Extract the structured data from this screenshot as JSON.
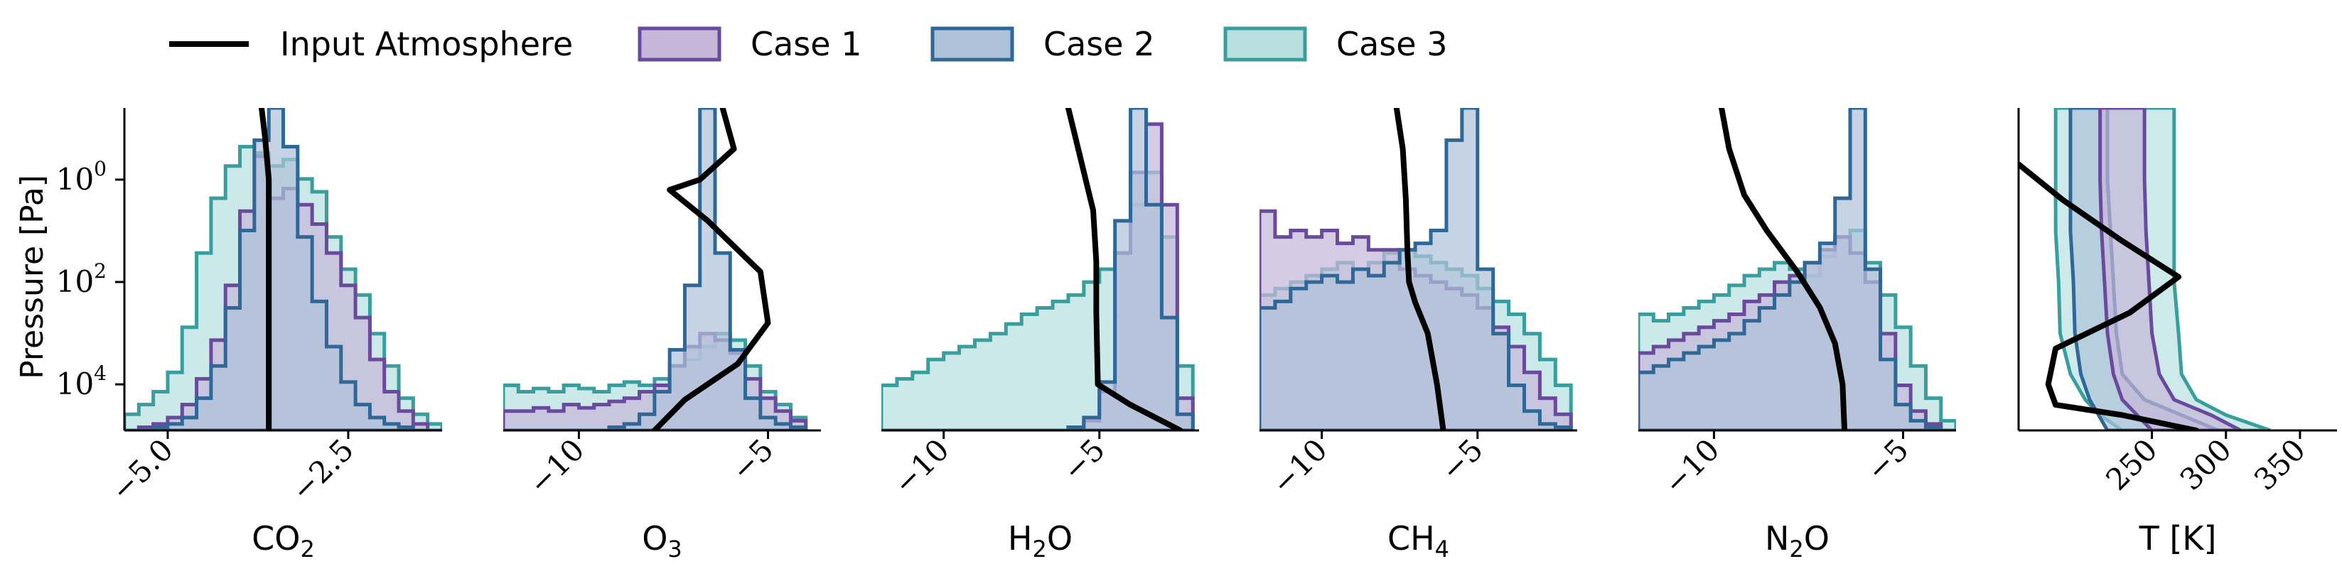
{
  "legend": {
    "placement": "top",
    "entries": [
      {
        "label": "Input Atmosphere",
        "kind": "line",
        "color": "#000000"
      },
      {
        "label": "Case 1",
        "kind": "patch",
        "fill": "#c6b7d9",
        "edge": "#6a4a9c"
      },
      {
        "label": "Case 2",
        "kind": "patch",
        "fill": "#aec2da",
        "edge": "#2f6796"
      },
      {
        "label": "Case 3",
        "kind": "patch",
        "fill": "#b9e0e0",
        "edge": "#3a9e9e"
      }
    ]
  },
  "ylabel": "Pressure [Pa]",
  "ytick_labels": [
    "10",
    "10",
    "10"
  ],
  "ytick_exponents": [
    "0",
    "2",
    "4"
  ],
  "colors": {
    "case1_fill": "#c6b7d9",
    "case1_edge": "#6a4a9c",
    "case2_fill": "#aec2da",
    "case2_edge": "#2f6796",
    "case3_fill": "#b9e0e0",
    "case3_edge": "#3a9e9e",
    "profile": "#000000"
  },
  "chart_data": [
    {
      "type": "histogram",
      "xlabel": "CO",
      "xlabel_sub": "2",
      "xlim": [
        -5.6,
        -1.2
      ],
      "xticks": [
        -5.0,
        -2.5
      ],
      "xtick_labels": [
        "−5.0",
        "−2.5"
      ],
      "ylim_log10": [
        4.9,
        -1.4
      ],
      "bins": [
        -5.6,
        -5.4,
        -5.2,
        -5.0,
        -4.8,
        -4.6,
        -4.4,
        -4.2,
        -4.0,
        -3.8,
        -3.6,
        -3.4,
        -3.2,
        -3.0,
        -2.8,
        -2.6,
        -2.4,
        -2.2,
        -2.0,
        -1.8,
        -1.6,
        -1.4,
        -1.2
      ],
      "series": [
        {
          "key": "case3",
          "heights": [
            0.05,
            0.08,
            0.12,
            0.18,
            0.32,
            0.55,
            0.72,
            0.82,
            0.88,
            0.86,
            0.82,
            0.84,
            0.78,
            0.74,
            0.6,
            0.5,
            0.42,
            0.3,
            0.2,
            0.1,
            0.05,
            0.02
          ]
        },
        {
          "key": "case1",
          "heights": [
            0,
            0.01,
            0.02,
            0.04,
            0.08,
            0.16,
            0.28,
            0.45,
            0.68,
            0.85,
            0.72,
            0.75,
            0.7,
            0.64,
            0.55,
            0.45,
            0.35,
            0.22,
            0.12,
            0.06,
            0.02,
            0
          ]
        },
        {
          "key": "case2",
          "heights": [
            0,
            0,
            0.01,
            0.02,
            0.04,
            0.1,
            0.2,
            0.38,
            0.62,
            0.9,
            1.0,
            0.88,
            0.6,
            0.4,
            0.26,
            0.15,
            0.08,
            0.04,
            0.02,
            0.01,
            0,
            0
          ]
        }
      ],
      "profile": {
        "x": [
          -3.7,
          -3.65,
          -3.6,
          -3.6,
          -3.6,
          -3.6,
          -3.6
        ],
        "logp": [
          -1.4,
          -0.8,
          0,
          1,
          2,
          3,
          4.9
        ]
      }
    },
    {
      "type": "histogram",
      "xlabel": "O",
      "xlabel_sub": "3",
      "xlim": [
        -12.0,
        -3.6
      ],
      "xticks": [
        -10,
        -5
      ],
      "xtick_labels": [
        "−10",
        "−5"
      ],
      "ylim_log10": [
        4.9,
        -1.4
      ],
      "bins": [
        -12.0,
        -11.6,
        -11.2,
        -10.8,
        -10.4,
        -10.0,
        -9.6,
        -9.2,
        -8.8,
        -8.4,
        -8.0,
        -7.6,
        -7.2,
        -6.8,
        -6.4,
        -6.0,
        -5.6,
        -5.2,
        -4.8,
        -4.4,
        -4.0,
        -3.6
      ],
      "series": [
        {
          "key": "case3",
          "heights": [
            0.14,
            0.12,
            0.13,
            0.12,
            0.14,
            0.13,
            0.12,
            0.14,
            0.15,
            0.14,
            0.16,
            0.2,
            0.22,
            0.26,
            0.3,
            0.28,
            0.2,
            0.12,
            0.08,
            0.04
          ]
        },
        {
          "key": "case1",
          "heights": [
            0.06,
            0.06,
            0.07,
            0.06,
            0.08,
            0.07,
            0.08,
            0.09,
            0.1,
            0.12,
            0.14,
            0.2,
            0.26,
            0.3,
            0.28,
            0.24,
            0.16,
            0.1,
            0.06,
            0.03
          ]
        },
        {
          "key": "case2",
          "heights": [
            0,
            0,
            0,
            0,
            0,
            0,
            0,
            0.01,
            0.02,
            0.05,
            0.12,
            0.25,
            0.45,
            1.0,
            0.55,
            0.25,
            0.1,
            0.04,
            0.02,
            0.01
          ]
        }
      ],
      "profile": {
        "x": [
          -6.2,
          -5.9,
          -6.8,
          -7.6,
          -6.6,
          -5.2,
          -5.0,
          -5.8,
          -7.2,
          -8.0
        ],
        "logp": [
          -1.4,
          -0.6,
          0,
          0.2,
          0.8,
          1.8,
          2.8,
          3.6,
          4.3,
          4.9
        ]
      }
    },
    {
      "type": "histogram",
      "xlabel": "H",
      "xlabel_sub": "2",
      "xlabel_tail": "O",
      "xlim": [
        -12.0,
        -1.8
      ],
      "xticks": [
        -10,
        -5
      ],
      "xtick_labels": [
        "−10",
        "−5"
      ],
      "ylim_log10": [
        4.9,
        -1.4
      ],
      "bins": [
        -12.0,
        -11.5,
        -11.0,
        -10.5,
        -10.0,
        -9.5,
        -9.0,
        -8.5,
        -8.0,
        -7.5,
        -7.0,
        -6.5,
        -6.0,
        -5.5,
        -5.0,
        -4.5,
        -4.0,
        -3.5,
        -3.0,
        -2.5,
        -2.0
      ],
      "series": [
        {
          "key": "case3",
          "heights": [
            0.14,
            0.16,
            0.18,
            0.22,
            0.24,
            0.26,
            0.28,
            0.3,
            0.33,
            0.36,
            0.38,
            0.4,
            0.42,
            0.46,
            0.5,
            0.55,
            0.7,
            0.8,
            0.6,
            0.2
          ]
        },
        {
          "key": "case1",
          "heights": [
            0,
            0,
            0,
            0,
            0,
            0,
            0,
            0,
            0,
            0,
            0,
            0,
            0.01,
            0.03,
            0.12,
            0.55,
            0.8,
            0.95,
            0.7,
            0.1
          ]
        },
        {
          "key": "case2",
          "heights": [
            0,
            0,
            0,
            0,
            0,
            0,
            0,
            0,
            0,
            0,
            0,
            0,
            0.01,
            0.04,
            0.15,
            0.65,
            1.0,
            0.7,
            0.35,
            0.05
          ]
        }
      ],
      "profile": {
        "x": [
          -6.0,
          -5.6,
          -5.2,
          -5.1,
          -5.1,
          -5.05,
          -4.0,
          -2.4
        ],
        "logp": [
          -1.4,
          -0.4,
          0.6,
          1.6,
          2.6,
          4.0,
          4.4,
          4.9
        ]
      }
    },
    {
      "type": "histogram",
      "xlabel": "CH",
      "xlabel_sub": "4",
      "xlim": [
        -12.0,
        -1.8
      ],
      "xticks": [
        -10,
        -5
      ],
      "xtick_labels": [
        "−10",
        "−5"
      ],
      "ylim_log10": [
        4.9,
        -1.4
      ],
      "bins": [
        -12.0,
        -11.5,
        -11.0,
        -10.5,
        -10.0,
        -9.5,
        -9.0,
        -8.5,
        -8.0,
        -7.5,
        -7.0,
        -6.5,
        -6.0,
        -5.5,
        -5.0,
        -4.5,
        -4.0,
        -3.5,
        -3.0,
        -2.5,
        -2.0
      ],
      "series": [
        {
          "key": "case3",
          "heights": [
            0.42,
            0.44,
            0.46,
            0.48,
            0.5,
            0.52,
            0.5,
            0.52,
            0.55,
            0.56,
            0.54,
            0.52,
            0.5,
            0.48,
            0.44,
            0.4,
            0.36,
            0.3,
            0.22,
            0.14
          ]
        },
        {
          "key": "case1",
          "heights": [
            0.68,
            0.6,
            0.62,
            0.6,
            0.62,
            0.58,
            0.6,
            0.56,
            0.56,
            0.5,
            0.48,
            0.46,
            0.44,
            0.42,
            0.38,
            0.32,
            0.26,
            0.18,
            0.1,
            0.05
          ]
        },
        {
          "key": "case2",
          "heights": [
            0.38,
            0.4,
            0.44,
            0.46,
            0.48,
            0.46,
            0.5,
            0.48,
            0.52,
            0.56,
            0.58,
            0.62,
            0.9,
            1.0,
            0.5,
            0.3,
            0.14,
            0.06,
            0.02,
            0.01
          ]
        }
      ],
      "profile": {
        "x": [
          -7.6,
          -7.4,
          -7.3,
          -7.25,
          -7.2,
          -7.0,
          -6.6,
          -6.3,
          -6.1
        ],
        "logp": [
          -1.4,
          -0.6,
          0.4,
          1.4,
          2.0,
          2.4,
          3.0,
          4.0,
          4.9
        ]
      }
    },
    {
      "type": "histogram",
      "xlabel": "N",
      "xlabel_sub": "2",
      "xlabel_tail": "O",
      "xlim": [
        -12.0,
        -3.6
      ],
      "xticks": [
        -10,
        -5
      ],
      "xtick_labels": [
        "−10",
        "−5"
      ],
      "ylim_log10": [
        4.9,
        -1.4
      ],
      "bins": [
        -12.0,
        -11.6,
        -11.2,
        -10.8,
        -10.4,
        -10.0,
        -9.6,
        -9.2,
        -8.8,
        -8.4,
        -8.0,
        -7.6,
        -7.2,
        -6.8,
        -6.4,
        -6.0,
        -5.6,
        -5.2,
        -4.8,
        -4.4,
        -4.0,
        -3.6
      ],
      "series": [
        {
          "key": "case3",
          "heights": [
            0.36,
            0.34,
            0.36,
            0.38,
            0.4,
            0.42,
            0.45,
            0.48,
            0.5,
            0.52,
            0.5,
            0.48,
            0.54,
            0.6,
            0.62,
            0.52,
            0.42,
            0.32,
            0.2,
            0.1,
            0.03
          ]
        },
        {
          "key": "case1",
          "heights": [
            0.24,
            0.26,
            0.28,
            0.3,
            0.32,
            0.34,
            0.36,
            0.4,
            0.42,
            0.46,
            0.48,
            0.52,
            0.56,
            0.6,
            0.55,
            0.46,
            0.3,
            0.14,
            0.06,
            0.02,
            0
          ]
        },
        {
          "key": "case2",
          "heights": [
            0.18,
            0.2,
            0.22,
            0.24,
            0.26,
            0.28,
            0.3,
            0.34,
            0.38,
            0.42,
            0.46,
            0.52,
            0.58,
            0.72,
            1.0,
            0.5,
            0.22,
            0.08,
            0.03,
            0.01,
            0
          ]
        }
      ],
      "profile": {
        "x": [
          -9.8,
          -9.6,
          -9.2,
          -8.6,
          -7.8,
          -7.2,
          -6.8,
          -6.6,
          -6.55
        ],
        "logp": [
          -1.4,
          -0.6,
          0.3,
          1.0,
          1.8,
          2.5,
          3.2,
          4.0,
          4.9
        ]
      }
    },
    {
      "type": "line",
      "xlabel": "T [K]",
      "xlim": [
        160,
        375
      ],
      "xticks": [
        250,
        300,
        350
      ],
      "xtick_labels": [
        "250",
        "300",
        "350"
      ],
      "ylim_log10": [
        4.9,
        -1.4
      ],
      "bands": [
        {
          "key": "case3",
          "lo": [
            185,
            185,
            185,
            187,
            188,
            195,
            205,
            215,
            230
          ],
          "hi": [
            265,
            265,
            265,
            265,
            268,
            270,
            280,
            300,
            330
          ],
          "logp": [
            -1.4,
            0,
            1,
            2,
            3,
            3.8,
            4.3,
            4.6,
            4.9
          ]
        },
        {
          "key": "case2",
          "lo": [
            195,
            195,
            195,
            197,
            198,
            202,
            208,
            214,
            220
          ],
          "hi": [
            220,
            220,
            222,
            224,
            226,
            230,
            245,
            270,
            295
          ],
          "logp": [
            -1.4,
            0,
            1,
            2,
            3,
            3.8,
            4.3,
            4.6,
            4.9
          ]
        },
        {
          "key": "case1",
          "lo": [
            215,
            215,
            216,
            218,
            220,
            224,
            230,
            240,
            250
          ],
          "hi": [
            245,
            245,
            246,
            248,
            250,
            255,
            265,
            290,
            310
          ],
          "logp": [
            -1.4,
            0,
            1,
            2,
            3,
            3.8,
            4.3,
            4.6,
            4.9
          ]
        }
      ],
      "profile": {
        "x": [
          160,
          190,
          230,
          268,
          235,
          185,
          180,
          185,
          230,
          280
        ],
        "logp": [
          -0.3,
          0.4,
          1.2,
          1.9,
          2.6,
          3.3,
          4.0,
          4.4,
          4.6,
          4.9
        ]
      }
    }
  ]
}
